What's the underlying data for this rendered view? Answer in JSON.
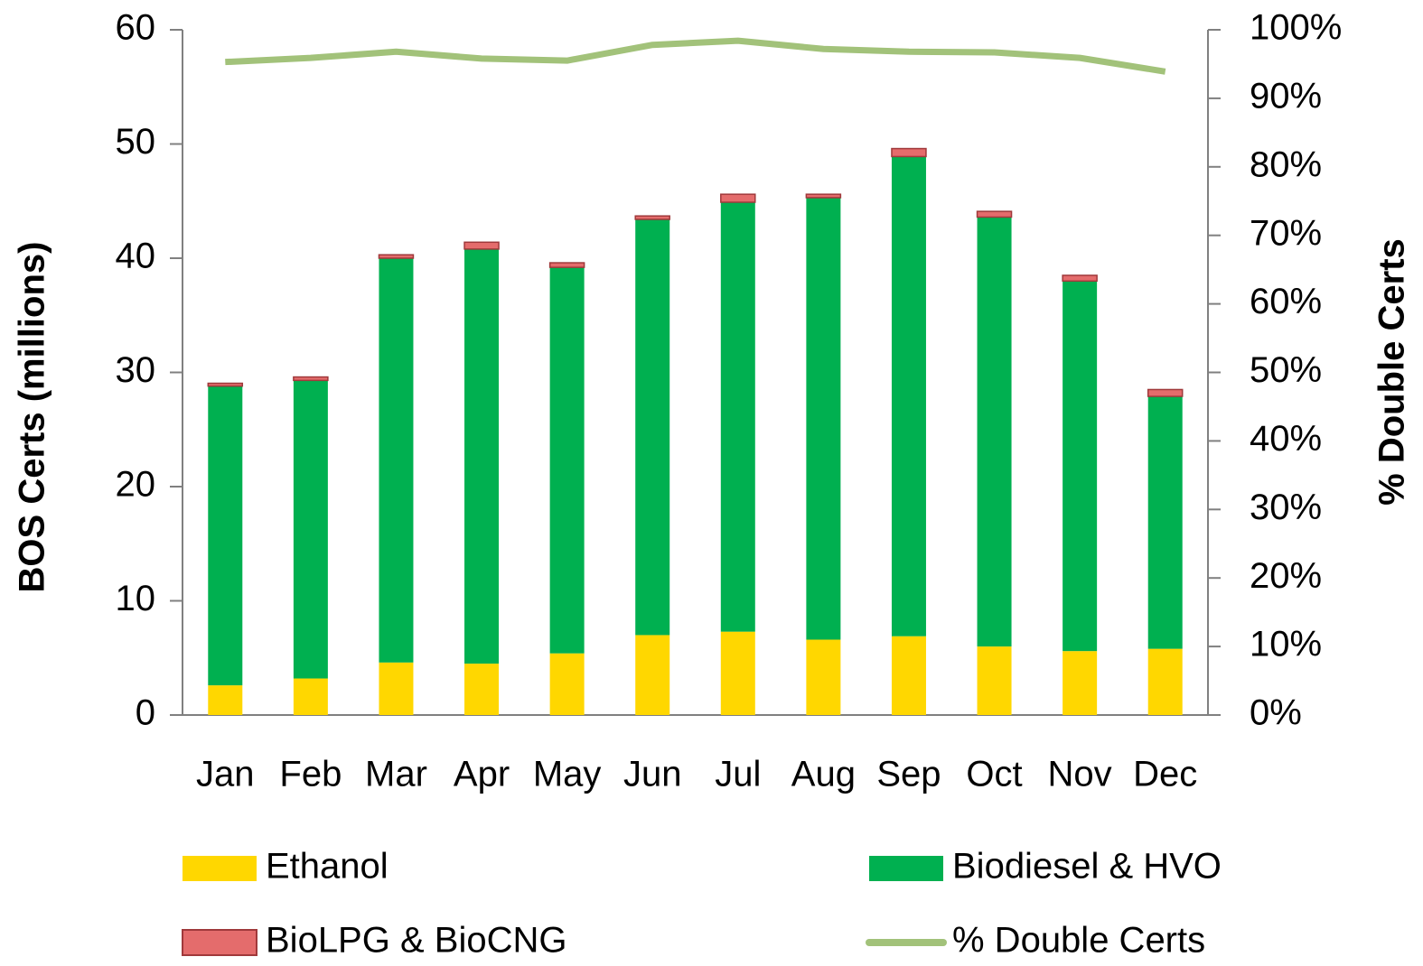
{
  "chart_data": {
    "type": "bar",
    "stacked": true,
    "y_axis_label": "BOS Certs (millions)",
    "y2_axis_label": "% Double Certs",
    "categories": [
      "Jan",
      "Feb",
      "Mar",
      "Apr",
      "May",
      "Jun",
      "Jul",
      "Aug",
      "Sep",
      "Oct",
      "Nov",
      "Dec"
    ],
    "series": [
      {
        "name": "Ethanol",
        "color": "#ffd700",
        "values": [
          2.6,
          3.2,
          4.6,
          4.5,
          5.4,
          7.0,
          7.3,
          6.6,
          6.9,
          6.0,
          5.6,
          5.8
        ]
      },
      {
        "name": "Biodiesel & HVO",
        "color": "#00b050",
        "values": [
          26.2,
          26.1,
          35.4,
          36.3,
          33.8,
          36.4,
          37.6,
          38.7,
          42.0,
          37.6,
          32.4,
          22.1
        ]
      },
      {
        "name": "BioLPG & BioCNG",
        "color": "#e46c6c",
        "values": [
          0.25,
          0.3,
          0.3,
          0.6,
          0.4,
          0.3,
          0.7,
          0.3,
          0.7,
          0.5,
          0.5,
          0.6
        ]
      },
      {
        "name": "% Double Certs",
        "color": "#a2c27a",
        "type": "line",
        "axis": "y2",
        "values": [
          95.3,
          95.9,
          96.8,
          95.8,
          95.5,
          97.8,
          98.4,
          97.2,
          96.8,
          96.7,
          95.9,
          93.9
        ]
      }
    ],
    "ylim": [
      0,
      60
    ],
    "yticks": [
      0,
      10,
      20,
      30,
      40,
      50,
      60
    ],
    "y2lim": [
      0,
      100
    ],
    "y2ticks": [
      {
        "value": 0,
        "label": "0%"
      },
      {
        "value": 10,
        "label": "10%"
      },
      {
        "value": 20,
        "label": "20%"
      },
      {
        "value": 30,
        "label": "30%"
      },
      {
        "value": 40,
        "label": "40%"
      },
      {
        "value": 50,
        "label": "50%"
      },
      {
        "value": 60,
        "label": "60%"
      },
      {
        "value": 70,
        "label": "70%"
      },
      {
        "value": 80,
        "label": "80%"
      },
      {
        "value": 90,
        "label": "90%"
      },
      {
        "value": 100,
        "label": "100%"
      }
    ],
    "grid": false,
    "legend": "bottom"
  }
}
